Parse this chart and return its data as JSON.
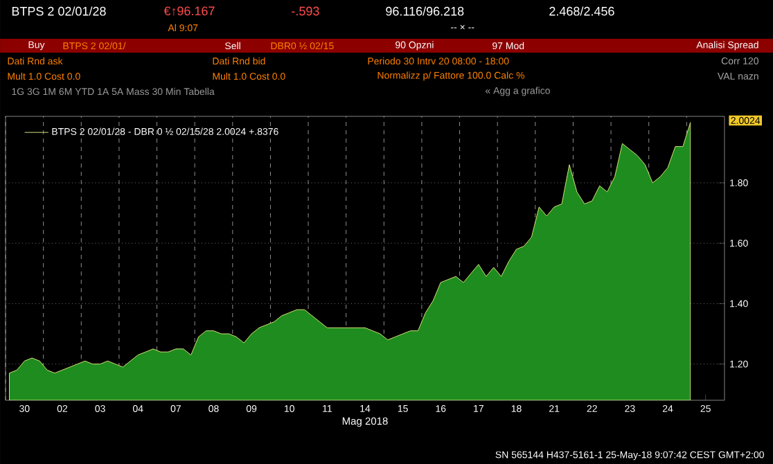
{
  "chart_data": {
    "type": "area",
    "xlabel": "Mag 2018",
    "ylim": [
      1.08,
      2.02
    ],
    "categories": [
      null,
      null,
      "30",
      null,
      null,
      null,
      null,
      "02",
      null,
      null,
      null,
      null,
      "03",
      null,
      null,
      null,
      null,
      "04",
      null,
      null,
      null,
      null,
      "07",
      null,
      null,
      null,
      null,
      "08",
      null,
      null,
      null,
      null,
      "09",
      null,
      null,
      null,
      null,
      "10",
      null,
      null,
      null,
      null,
      "11",
      null,
      null,
      null,
      null,
      "14",
      null,
      null,
      null,
      null,
      "15",
      null,
      null,
      null,
      null,
      "16",
      null,
      null,
      null,
      null,
      "17",
      null,
      null,
      null,
      null,
      "18",
      null,
      null,
      null,
      null,
      "21",
      null,
      null,
      null,
      null,
      "22",
      null,
      null,
      null,
      null,
      "23",
      null,
      null,
      null,
      null,
      "24",
      null,
      null,
      null,
      null,
      "25",
      null,
      null
    ],
    "yticks": [
      {
        "value": 1.2,
        "label": "1.20"
      },
      {
        "value": 1.4,
        "label": "1.40"
      },
      {
        "value": 1.6,
        "label": "1.60"
      },
      {
        "value": 1.8,
        "label": "1.80"
      }
    ],
    "grid": true,
    "legend": "top left",
    "series": [
      {
        "name": "BTPS 2 02/01/28 - DBR 0 ½ 02/15/28 2.0024 +.8376",
        "color": "#1e8c1e",
        "values": [
          1.17,
          1.18,
          1.21,
          1.22,
          1.21,
          1.18,
          1.17,
          1.18,
          1.19,
          1.2,
          1.21,
          1.2,
          1.2,
          1.21,
          1.2,
          1.19,
          1.21,
          1.23,
          1.24,
          1.25,
          1.24,
          1.24,
          1.25,
          1.25,
          1.23,
          1.29,
          1.31,
          1.31,
          1.3,
          1.3,
          1.29,
          1.27,
          1.3,
          1.32,
          1.33,
          1.34,
          1.36,
          1.37,
          1.38,
          1.38,
          1.36,
          1.34,
          1.32,
          1.32,
          1.32,
          1.32,
          1.32,
          1.32,
          1.31,
          1.3,
          1.28,
          1.29,
          1.3,
          1.31,
          1.31,
          1.37,
          1.41,
          1.47,
          1.48,
          1.49,
          1.47,
          1.5,
          1.53,
          1.49,
          1.52,
          1.49,
          1.54,
          1.58,
          1.59,
          1.62,
          1.72,
          1.69,
          1.72,
          1.73,
          1.86,
          1.77,
          1.73,
          1.74,
          1.79,
          1.77,
          1.82,
          1.93,
          1.91,
          1.89,
          1.86,
          1.8,
          1.82,
          1.85,
          1.92,
          1.92,
          2.0,
          null,
          null,
          null,
          null
        ]
      }
    ],
    "annotations": [
      "BTPS 2 02/01/28",
      "€↑96.167",
      "-.593",
      "96.116/96.218",
      "2.468/2.456",
      "Al 9:07",
      "-- × --",
      "Buy",
      "BTPS 2 02/01/",
      "Sell",
      "DBR0 ½ 02/15",
      "90 Opzni",
      "97 Mod",
      "Analisi Spread",
      "Dati Rnd ask",
      "Dati Rnd bid",
      "Periodo 30 Intrv 20 08:00 - 18:00",
      "Corr 120",
      "Mult 1.0 Cost 0.0",
      "Mult 1.0 Cost 0.0",
      "Normalizz p/ Fattore 100.0 Calc %",
      "VAL nazn",
      "1G 3G 1M 6M YTD 1A 5A Mass 30 Min Tabella",
      "« Agg a grafico",
      "SN 565144 H437-5161-1 25-May-18 9:07:42 CEST GMT+2:00",
      "2.0024"
    ]
  }
}
